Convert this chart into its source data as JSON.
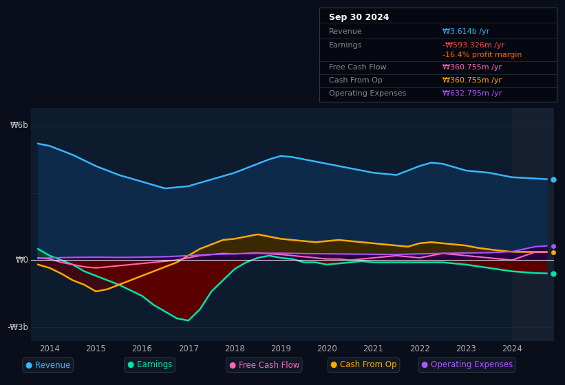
{
  "bg_color": "#0a0e1a",
  "plot_bg_color": "#0d1b2e",
  "info_box": {
    "date": "Sep 30 2024",
    "revenue_label": "Revenue",
    "revenue_value": "₩3.614b /yr",
    "revenue_color": "#38b6ff",
    "earnings_label": "Earnings",
    "earnings_value": "-₩593.326m /yr",
    "earnings_value_color": "#ff4444",
    "earnings_margin": "-16.4% profit margin",
    "earnings_margin_color": "#ff6600",
    "fcf_label": "Free Cash Flow",
    "fcf_value": "₩360.755m /yr",
    "fcf_color": "#ff66bb",
    "cashop_label": "Cash From Op",
    "cashop_value": "₩360.755m /yr",
    "cashop_color": "#ffaa00",
    "opex_label": "Operating Expenses",
    "opex_value": "₩632.795m /yr",
    "opex_color": "#aa55ff"
  },
  "revenue_color": "#38b6ff",
  "revenue_fill": "#0e2a4a",
  "earnings_color": "#00e5aa",
  "earnings_neg_fill": "#5a0000",
  "earnings_pos_fill": "#004433",
  "cashop_color": "#ffaa00",
  "cashop_fill": "#3a2800",
  "fcf_color": "#ff66bb",
  "opex_color": "#aa55ff",
  "opex_fill": "#280040",
  "zero_line_color": "#dddddd",
  "grid_color": "#1a2a3a",
  "highlight_color": "#162030",
  "ytick_labels": [
    "₩6b",
    "₩0",
    "-₩3b"
  ],
  "ytick_vals": [
    6000000000,
    0,
    -3000000000
  ],
  "x_years": [
    2014,
    2015,
    2016,
    2017,
    2018,
    2019,
    2020,
    2021,
    2022,
    2023,
    2024
  ],
  "rev_x": [
    2013.75,
    2014.0,
    2014.5,
    2015.0,
    2015.5,
    2016.0,
    2016.5,
    2017.0,
    2017.5,
    2018.0,
    2018.25,
    2018.5,
    2018.75,
    2019.0,
    2019.25,
    2019.5,
    2019.75,
    2020.0,
    2020.5,
    2021.0,
    2021.5,
    2022.0,
    2022.25,
    2022.5,
    2023.0,
    2023.5,
    2024.0,
    2024.75
  ],
  "rev_y": [
    5200000000,
    5100000000,
    4700000000,
    4200000000,
    3800000000,
    3500000000,
    3200000000,
    3300000000,
    3600000000,
    3900000000,
    4100000000,
    4300000000,
    4500000000,
    4650000000,
    4600000000,
    4500000000,
    4400000000,
    4300000000,
    4100000000,
    3900000000,
    3800000000,
    4200000000,
    4350000000,
    4300000000,
    4000000000,
    3900000000,
    3700000000,
    3614000000
  ],
  "earn_x": [
    2013.75,
    2014.0,
    2014.25,
    2014.5,
    2014.75,
    2015.0,
    2015.25,
    2015.5,
    2016.0,
    2016.25,
    2016.5,
    2016.75,
    2017.0,
    2017.25,
    2017.5,
    2018.0,
    2018.25,
    2018.5,
    2018.75,
    2019.0,
    2019.25,
    2019.5,
    2019.75,
    2020.0,
    2020.25,
    2020.5,
    2020.75,
    2021.0,
    2021.5,
    2022.0,
    2022.5,
    2023.0,
    2023.5,
    2024.0,
    2024.5,
    2024.75
  ],
  "earn_y": [
    500000000,
    200000000,
    0,
    -200000000,
    -500000000,
    -700000000,
    -900000000,
    -1100000000,
    -1600000000,
    -2000000000,
    -2300000000,
    -2600000000,
    -2700000000,
    -2200000000,
    -1400000000,
    -400000000,
    -100000000,
    100000000,
    200000000,
    100000000,
    50000000,
    -100000000,
    -100000000,
    -200000000,
    -150000000,
    -100000000,
    -50000000,
    -100000000,
    -100000000,
    -100000000,
    -100000000,
    -200000000,
    -350000000,
    -500000000,
    -580000000,
    -593326000
  ],
  "cop_x": [
    2013.75,
    2014.0,
    2014.25,
    2014.5,
    2014.75,
    2015.0,
    2015.25,
    2015.5,
    2015.75,
    2016.0,
    2016.25,
    2016.5,
    2016.75,
    2017.0,
    2017.25,
    2017.5,
    2017.75,
    2018.0,
    2018.25,
    2018.5,
    2018.75,
    2019.0,
    2019.25,
    2019.5,
    2019.75,
    2020.0,
    2020.25,
    2020.5,
    2020.75,
    2021.0,
    2021.25,
    2021.5,
    2021.75,
    2022.0,
    2022.25,
    2022.5,
    2022.75,
    2023.0,
    2023.25,
    2023.5,
    2023.75,
    2024.0,
    2024.5,
    2024.75
  ],
  "cop_y": [
    -200000000,
    -350000000,
    -600000000,
    -900000000,
    -1100000000,
    -1400000000,
    -1300000000,
    -1100000000,
    -900000000,
    -700000000,
    -500000000,
    -300000000,
    -100000000,
    200000000,
    500000000,
    700000000,
    900000000,
    950000000,
    1050000000,
    1150000000,
    1050000000,
    950000000,
    900000000,
    850000000,
    800000000,
    850000000,
    900000000,
    850000000,
    800000000,
    750000000,
    700000000,
    650000000,
    600000000,
    750000000,
    800000000,
    750000000,
    700000000,
    650000000,
    550000000,
    480000000,
    420000000,
    370000000,
    360755000,
    360755000
  ],
  "fcf_x": [
    2013.75,
    2014.0,
    2014.25,
    2014.5,
    2014.75,
    2015.0,
    2015.25,
    2015.5,
    2015.75,
    2016.0,
    2016.25,
    2016.5,
    2016.75,
    2017.0,
    2017.25,
    2017.5,
    2017.75,
    2018.0,
    2018.25,
    2018.5,
    2018.75,
    2019.0,
    2019.25,
    2019.5,
    2019.75,
    2020.0,
    2020.25,
    2020.5,
    2020.75,
    2021.0,
    2021.25,
    2021.5,
    2021.75,
    2022.0,
    2022.25,
    2022.5,
    2022.75,
    2023.0,
    2023.25,
    2023.5,
    2023.75,
    2024.0,
    2024.5,
    2024.75
  ],
  "fcf_y": [
    100000000,
    50000000,
    -100000000,
    -200000000,
    -300000000,
    -350000000,
    -300000000,
    -250000000,
    -200000000,
    -150000000,
    -100000000,
    -50000000,
    0,
    100000000,
    200000000,
    250000000,
    300000000,
    280000000,
    300000000,
    320000000,
    280000000,
    250000000,
    200000000,
    150000000,
    100000000,
    50000000,
    50000000,
    0,
    50000000,
    100000000,
    150000000,
    200000000,
    150000000,
    100000000,
    200000000,
    300000000,
    250000000,
    200000000,
    150000000,
    100000000,
    50000000,
    0,
    360755000,
    360755000
  ],
  "opex_x": [
    2013.75,
    2014.0,
    2014.5,
    2015.0,
    2015.5,
    2016.0,
    2016.5,
    2017.0,
    2017.5,
    2018.0,
    2018.5,
    2019.0,
    2019.5,
    2020.0,
    2020.5,
    2021.0,
    2021.5,
    2022.0,
    2022.5,
    2023.0,
    2023.5,
    2024.0,
    2024.5,
    2024.75
  ],
  "opex_y": [
    80000000,
    100000000,
    120000000,
    130000000,
    120000000,
    130000000,
    150000000,
    200000000,
    250000000,
    280000000,
    300000000,
    310000000,
    290000000,
    280000000,
    270000000,
    260000000,
    250000000,
    280000000,
    300000000,
    320000000,
    330000000,
    380000000,
    600000000,
    632795000
  ],
  "xmin": 2013.6,
  "xmax": 2024.9,
  "ymin": -3600000000,
  "ymax": 6800000000,
  "highlight_xstart": 2024.0
}
